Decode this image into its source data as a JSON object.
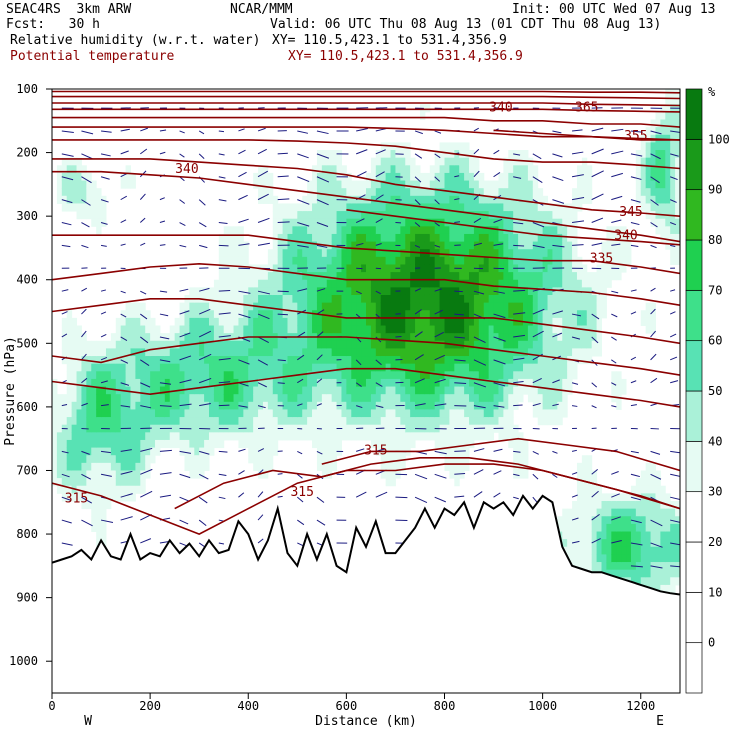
{
  "header": {
    "model": "SEAC4RS  3km ARW",
    "org": "NCAR/MMM",
    "init": "Init: 00 UTC Wed 07 Aug 13",
    "fcst": "Fcst:   30 h",
    "valid": "Valid: 06 UTC Thu 08 Aug 13 (01 CDT Thu 08 Aug 13)",
    "field1": "Relative humidity (w.r.t. water)",
    "field1_xy": "XY= 110.5,423.1 to 531.4,356.9",
    "field2": "Potential temperature",
    "field2_xy": "XY= 110.5,423.1 to 531.4,356.9"
  },
  "colors": {
    "theta": "#8b0000",
    "vectors": "#1a1a80",
    "terrain": "#000000",
    "rh_scale": [
      "#ffffff",
      "#ffffff",
      "#ffffff",
      "#ffffff",
      "#e6fbf3",
      "#aaf1d8",
      "#58e2b4",
      "#3ee08a",
      "#1fd050",
      "#30b820",
      "#1a9a1a",
      "#087a10"
    ]
  },
  "chart_data": {
    "type": "heatmap",
    "title": "Relative humidity (w.r.t. water)",
    "overlay": "Potential temperature",
    "xlabel": "Distance (km)",
    "ylabel": "Pressure (hPa)",
    "xlim": [
      0,
      1280
    ],
    "ylim": [
      1050,
      100
    ],
    "x_ticks": [
      0,
      200,
      400,
      600,
      800,
      1000,
      1200
    ],
    "y_ticks": [
      100,
      200,
      300,
      400,
      500,
      600,
      700,
      800,
      900,
      1000
    ],
    "x_end_labels": {
      "left": "W",
      "right": "E"
    },
    "colorbar": {
      "unit": "%",
      "ticks": [
        0,
        10,
        20,
        30,
        40,
        50,
        60,
        70,
        80,
        90,
        100
      ],
      "levels": [
        -10,
        0,
        10,
        20,
        30,
        40,
        50,
        60,
        70,
        80,
        90,
        100,
        110
      ]
    },
    "terrain_surface": {
      "x": [
        0,
        20,
        40,
        60,
        80,
        100,
        120,
        140,
        160,
        180,
        200,
        220,
        240,
        260,
        280,
        300,
        320,
        340,
        360,
        380,
        400,
        420,
        440,
        460,
        480,
        500,
        520,
        540,
        560,
        580,
        600,
        620,
        640,
        660,
        680,
        700,
        720,
        740,
        760,
        780,
        800,
        820,
        840,
        860,
        880,
        900,
        920,
        940,
        960,
        980,
        1000,
        1020,
        1040,
        1060,
        1080,
        1100,
        1120,
        1140,
        1160,
        1180,
        1200,
        1220,
        1240,
        1260,
        1280
      ],
      "p": [
        845,
        840,
        835,
        825,
        840,
        810,
        835,
        840,
        800,
        840,
        830,
        835,
        810,
        830,
        815,
        835,
        810,
        830,
        825,
        780,
        800,
        840,
        810,
        760,
        830,
        850,
        800,
        840,
        800,
        850,
        860,
        790,
        820,
        780,
        830,
        830,
        810,
        790,
        760,
        790,
        760,
        770,
        750,
        790,
        750,
        760,
        750,
        770,
        740,
        760,
        740,
        750,
        820,
        850,
        855,
        860,
        860,
        865,
        870,
        875,
        880,
        885,
        890,
        893,
        895
      ]
    },
    "theta_contours": [
      {
        "label": "315",
        "label_x": 50,
        "label_p": 750,
        "x": [
          0,
          100,
          200,
          300,
          400,
          500,
          600,
          700,
          800,
          900,
          1000,
          1100,
          1200,
          1280
        ],
        "p": [
          720,
          740,
          770,
          800,
          760,
          720,
          700,
          700,
          690,
          690,
          700,
          720,
          740,
          760
        ]
      },
      {
        "label": "315",
        "label_x": 510,
        "label_p": 740,
        "x": [
          250,
          350,
          450,
          550,
          650,
          750,
          850,
          950,
          1050,
          1150,
          1280
        ],
        "p": [
          760,
          720,
          700,
          710,
          690,
          680,
          680,
          690,
          710,
          730,
          760
        ]
      },
      {
        "label": "315",
        "label_x": 660,
        "label_p": 675,
        "x": [
          550,
          650,
          750,
          850,
          950,
          1050,
          1150,
          1280
        ],
        "p": [
          690,
          670,
          670,
          660,
          650,
          660,
          670,
          700
        ]
      },
      {
        "label": "",
        "x": [
          0,
          100,
          200,
          300,
          400,
          500,
          600,
          700,
          800,
          900,
          1000,
          1100,
          1200,
          1280
        ],
        "p": [
          560,
          570,
          580,
          570,
          560,
          550,
          540,
          540,
          550,
          560,
          570,
          580,
          590,
          600
        ]
      },
      {
        "label": "",
        "x": [
          0,
          100,
          200,
          300,
          400,
          500,
          600,
          700,
          800,
          900,
          1000,
          1100,
          1200,
          1280
        ],
        "p": [
          520,
          530,
          510,
          500,
          490,
          490,
          490,
          495,
          500,
          510,
          520,
          530,
          540,
          550
        ]
      },
      {
        "label": "",
        "x": [
          0,
          100,
          200,
          300,
          400,
          500,
          600,
          700,
          800,
          900,
          1000,
          1100,
          1200,
          1280
        ],
        "p": [
          450,
          440,
          430,
          430,
          440,
          450,
          460,
          460,
          460,
          460,
          470,
          480,
          490,
          500
        ]
      },
      {
        "label": "",
        "x": [
          0,
          100,
          200,
          300,
          400,
          500,
          600,
          700,
          800,
          900,
          1000,
          1100,
          1200,
          1280
        ],
        "p": [
          400,
          390,
          380,
          375,
          380,
          390,
          400,
          400,
          400,
          410,
          415,
          420,
          430,
          440
        ]
      },
      {
        "label": "335",
        "label_x": 1120,
        "label_p": 373,
        "x": [
          0,
          100,
          200,
          300,
          400,
          500,
          600,
          700,
          800,
          900,
          1000,
          1100,
          1200,
          1280
        ],
        "p": [
          330,
          330,
          330,
          330,
          330,
          340,
          350,
          355,
          360,
          365,
          370,
          370,
          380,
          390
        ]
      },
      {
        "label": "340",
        "label_x": 275,
        "label_p": 232,
        "x": [
          0,
          100,
          200,
          300,
          400,
          500,
          600,
          700,
          800,
          900,
          1000,
          1100,
          1200,
          1280
        ],
        "p": [
          230,
          230,
          235,
          240,
          250,
          260,
          270,
          280,
          290,
          300,
          310,
          320,
          330,
          340
        ]
      },
      {
        "label": "340",
        "label_x": 1170,
        "label_p": 337,
        "x": [
          600,
          700,
          800,
          900,
          1000,
          1100,
          1200,
          1280
        ],
        "p": [
          290,
          300,
          310,
          320,
          330,
          335,
          340,
          345
        ]
      },
      {
        "label": "345",
        "label_x": 1180,
        "label_p": 300,
        "x": [
          0,
          100,
          200,
          300,
          400,
          500,
          600,
          700,
          800,
          900,
          1000,
          1100,
          1200,
          1280
        ],
        "p": [
          210,
          210,
          210,
          215,
          220,
          225,
          235,
          250,
          260,
          270,
          280,
          290,
          295,
          300
        ]
      },
      {
        "label": "",
        "x": [
          0,
          100,
          200,
          300,
          400,
          500,
          600,
          700,
          800,
          900,
          1000,
          1100,
          1200,
          1280
        ],
        "p": [
          180,
          180,
          180,
          180,
          180,
          182,
          185,
          190,
          200,
          210,
          215,
          215,
          220,
          225
        ]
      },
      {
        "label": "",
        "x": [
          0,
          100,
          200,
          300,
          400,
          500,
          600,
          700,
          800,
          900,
          1000,
          1100,
          1200,
          1280
        ],
        "p": [
          160,
          160,
          160,
          160,
          160,
          160,
          160,
          162,
          165,
          170,
          175,
          175,
          180,
          180
        ]
      },
      {
        "label": "355",
        "label_x": 1190,
        "label_p": 180,
        "x": [
          900,
          1000,
          1100,
          1200,
          1280
        ],
        "p": [
          165,
          170,
          175,
          178,
          180
        ]
      },
      {
        "label": "",
        "x": [
          0,
          100,
          200,
          300,
          400,
          500,
          600,
          700,
          800,
          900,
          1000,
          1100,
          1200,
          1280
        ],
        "p": [
          145,
          145,
          145,
          145,
          145,
          145,
          145,
          145,
          145,
          150,
          150,
          155,
          155,
          160
        ]
      },
      {
        "label": "340",
        "label_x": 915,
        "label_p": 135,
        "x": [
          0,
          100,
          200,
          300,
          400,
          500,
          600,
          700,
          800,
          900,
          1000,
          1100,
          1200,
          1280
        ],
        "p": [
          132,
          132,
          132,
          132,
          132,
          132,
          132,
          132,
          132,
          132,
          132,
          134,
          135,
          136
        ]
      },
      {
        "label": "365",
        "label_x": 1090,
        "label_p": 135,
        "x": [
          0,
          100,
          200,
          300,
          400,
          500,
          600,
          700,
          800,
          900,
          1000,
          1100,
          1200,
          1280
        ],
        "p": [
          122,
          122,
          122,
          122,
          122,
          122,
          122,
          122,
          122,
          122,
          122,
          124,
          125,
          126
        ]
      },
      {
        "label": "",
        "x": [
          0,
          100,
          200,
          300,
          400,
          500,
          600,
          700,
          800,
          900,
          1000,
          1100,
          1200,
          1280
        ],
        "p": [
          112,
          112,
          112,
          112,
          112,
          112,
          112,
          112,
          112,
          112,
          112,
          113,
          114,
          115
        ]
      },
      {
        "label": "",
        "x": [
          0,
          100,
          200,
          300,
          400,
          500,
          600,
          700,
          800,
          900,
          1000,
          1100,
          1200,
          1280
        ],
        "p": [
          104,
          104,
          104,
          104,
          104,
          104,
          104,
          104,
          104,
          104,
          104,
          105,
          105,
          106
        ]
      }
    ]
  }
}
